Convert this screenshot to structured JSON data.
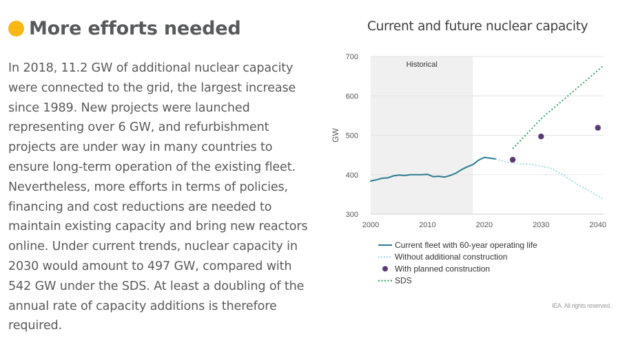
{
  "status": {
    "label": "More efforts needed",
    "color": "#f7b715"
  },
  "paragraph": "In 2018, 11.2 GW of additional nuclear capacity were connected to the grid, the largest increase since 1989. New projects were launched representing over 6 GW, and refurbishment projects are under way in many countries to ensure long-term operation of the existing fleet. Nevertheless, more efforts in terms of policies, financing and cost reductions are needed to maintain existing capacity and bring new reactors online. Under current trends, nuclear capacity in 2030 would amount to 497 GW, compared with 542 GW under the SDS. At least a doubling of the annual rate of capacity additions is therefore required.",
  "copyright": "IEA. All rights reserved.",
  "chart_data": {
    "type": "line",
    "title": "Current and future nuclear capacity",
    "xlabel": "",
    "ylabel": "GW",
    "xlim": [
      2000,
      2041
    ],
    "ylim": [
      300,
      700
    ],
    "xticks": [
      2000,
      2010,
      2020,
      2030,
      2040
    ],
    "yticks": [
      300,
      400,
      500,
      600,
      700
    ],
    "grid": "horizontal",
    "shaded_region": {
      "label": "Historical",
      "x_start": 2000,
      "x_end": 2018
    },
    "legend_position": "bottom",
    "series": [
      {
        "name": "Current fleet with 60-year operating life",
        "style": "solid",
        "color": "#2a7a91",
        "x": [
          2000,
          2001,
          2002,
          2003,
          2004,
          2005,
          2006,
          2007,
          2008,
          2009,
          2010,
          2011,
          2012,
          2013,
          2014,
          2015,
          2016,
          2017,
          2018,
          2019,
          2020,
          2021,
          2022
        ],
        "y": [
          384,
          387,
          391,
          392,
          397,
          399,
          398,
          400,
          400,
          400,
          401,
          395,
          396,
          394,
          398,
          404,
          413,
          420,
          426,
          437,
          444,
          442,
          440
        ]
      },
      {
        "name": "Without additional construction",
        "style": "dotted",
        "color": "#7ec8e3",
        "x": [
          2022,
          2024,
          2026,
          2028,
          2030,
          2032,
          2034,
          2036,
          2038,
          2040,
          2041
        ],
        "y": [
          440,
          432,
          428,
          427,
          422,
          415,
          398,
          379,
          363,
          347,
          336
        ]
      },
      {
        "name": "With planned construction",
        "style": "points",
        "color": "#5b3b73",
        "x": [
          2025,
          2030,
          2040
        ],
        "y": [
          438,
          497,
          519
        ]
      },
      {
        "name": "SDS",
        "style": "dashed",
        "color": "#1f9a4c",
        "x": [
          2025,
          2030,
          2041
        ],
        "y": [
          466,
          542,
          677
        ]
      }
    ]
  }
}
